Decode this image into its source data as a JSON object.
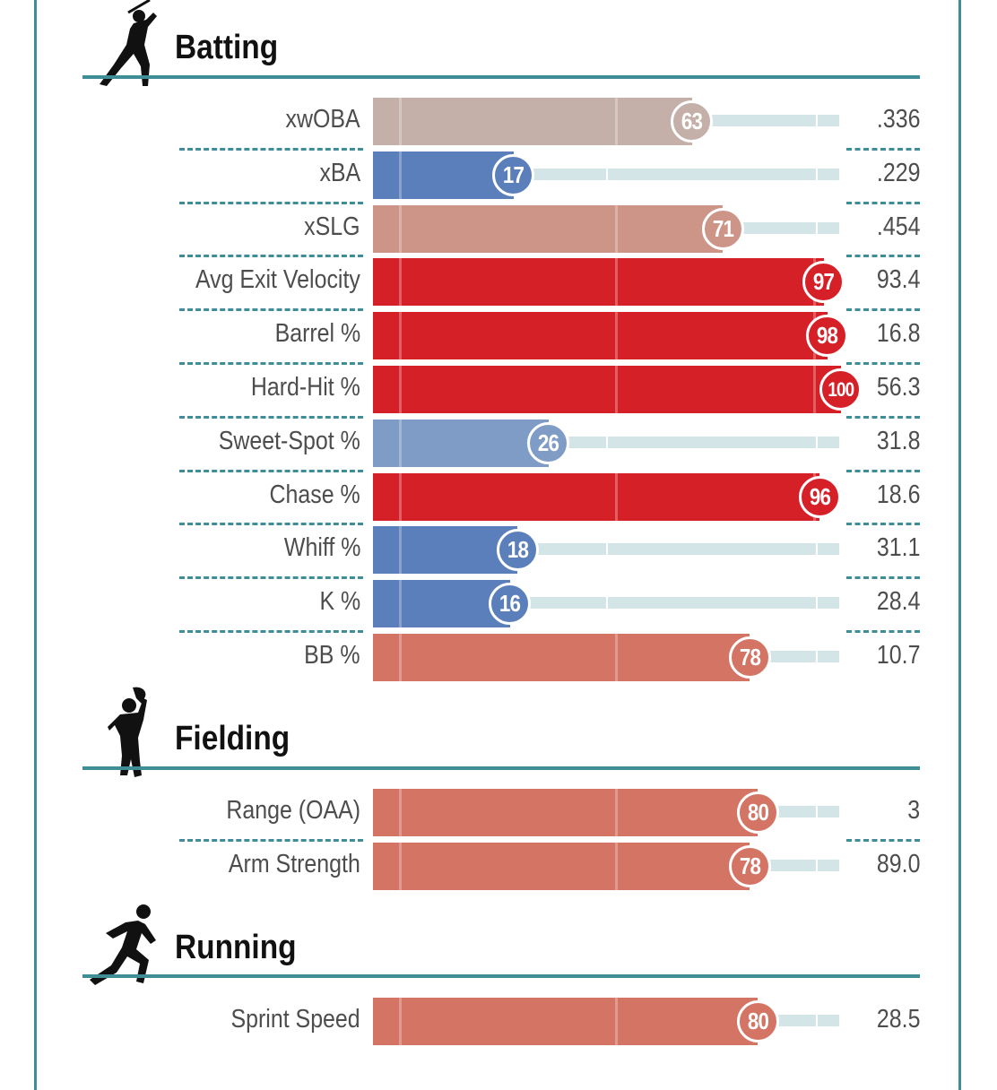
{
  "colors": {
    "accent": "#3f8e97",
    "track": "#d4e5e7",
    "elite_red": "#d62028",
    "blue": "#5a7fba",
    "light_blue": "#7f9cc6",
    "salmon": "#d47464",
    "tan": "#c5b0a9",
    "light_salmon": "#cd9488"
  },
  "sections": [
    {
      "id": "batting",
      "title": "Batting",
      "icon": "batter-silhouette-icon",
      "rows": [
        {
          "label": "xwOBA",
          "percentile": 63,
          "value": ".336",
          "color": "#c5b0a9"
        },
        {
          "label": "xBA",
          "percentile": 17,
          "value": ".229",
          "color": "#5a7fba"
        },
        {
          "label": "xSLG",
          "percentile": 71,
          "value": ".454",
          "color": "#cd9488"
        },
        {
          "label": "Avg Exit Velocity",
          "percentile": 97,
          "value": "93.4",
          "color": "#d62028"
        },
        {
          "label": "Barrel %",
          "percentile": 98,
          "value": "16.8",
          "color": "#d62028"
        },
        {
          "label": "Hard-Hit %",
          "percentile": 100,
          "value": "56.3",
          "color": "#d62028"
        },
        {
          "label": "Sweet-Spot %",
          "percentile": 26,
          "value": "31.8",
          "color": "#7f9cc6"
        },
        {
          "label": "Chase %",
          "percentile": 96,
          "value": "18.6",
          "color": "#d62028"
        },
        {
          "label": "Whiff %",
          "percentile": 18,
          "value": "31.1",
          "color": "#5a7fba"
        },
        {
          "label": "K %",
          "percentile": 16,
          "value": "28.4",
          "color": "#5a7fba"
        },
        {
          "label": "BB %",
          "percentile": 78,
          "value": "10.7",
          "color": "#d47464"
        }
      ]
    },
    {
      "id": "fielding",
      "title": "Fielding",
      "icon": "fielder-silhouette-icon",
      "rows": [
        {
          "label": "Range (OAA)",
          "percentile": 80,
          "value": "3",
          "color": "#d47464"
        },
        {
          "label": "Arm Strength",
          "percentile": 78,
          "value": "89.0",
          "color": "#d47464"
        }
      ]
    },
    {
      "id": "running",
      "title": "Running",
      "icon": "runner-silhouette-icon",
      "rows": [
        {
          "label": "Sprint Speed",
          "percentile": 80,
          "value": "28.5",
          "color": "#d47464"
        }
      ]
    }
  ]
}
